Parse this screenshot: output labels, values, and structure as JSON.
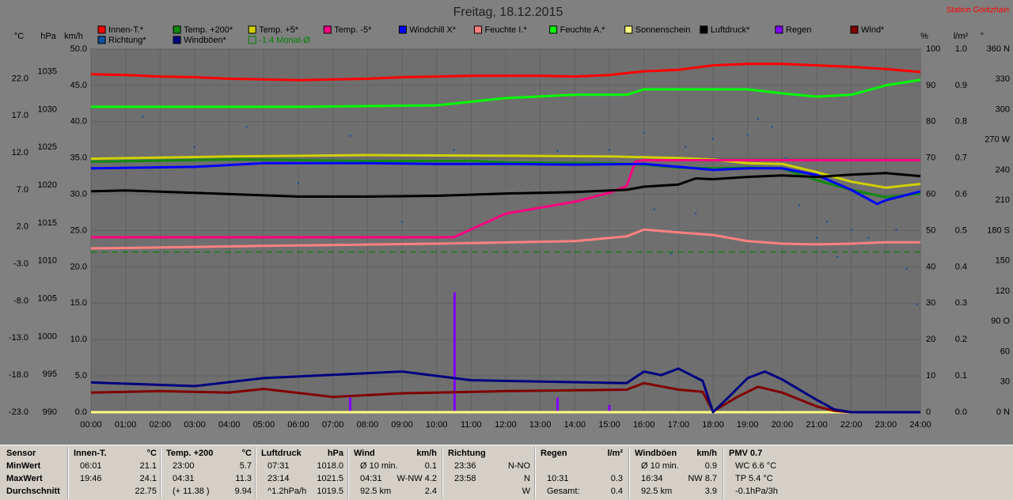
{
  "chart_data": {
    "type": "line",
    "title": "Freitag, 18.12.2015",
    "station": "Station Göritzhain",
    "xlim": [
      0,
      24
    ],
    "xticks": [
      {
        "value": 0,
        "label": "00:00"
      },
      {
        "value": 1,
        "label": "01:00"
      },
      {
        "value": 2,
        "label": "02:00"
      },
      {
        "value": 3,
        "label": "03:00"
      },
      {
        "value": 4,
        "label": "04:00"
      },
      {
        "value": 5,
        "label": "05:00"
      },
      {
        "value": 6,
        "label": "06:00"
      },
      {
        "value": 7,
        "label": "07:00"
      },
      {
        "value": 8,
        "label": "08:00"
      },
      {
        "value": 9,
        "label": "09:00"
      },
      {
        "value": 10,
        "label": "10:00"
      },
      {
        "value": 11,
        "label": "11:00"
      },
      {
        "value": 12,
        "label": "12:00"
      },
      {
        "value": 13,
        "label": "13:00"
      },
      {
        "value": 14,
        "label": "14:00"
      },
      {
        "value": 15,
        "label": "15:00"
      },
      {
        "value": 16,
        "label": "16:00"
      },
      {
        "value": 17,
        "label": "17:00"
      },
      {
        "value": 18,
        "label": "18:00"
      },
      {
        "value": 19,
        "label": "19:00"
      },
      {
        "value": 20,
        "label": "20:00"
      },
      {
        "value": 21,
        "label": "21:00"
      },
      {
        "value": 22,
        "label": "22:00"
      },
      {
        "value": 23,
        "label": "23:00"
      },
      {
        "value": 24,
        "label": "24:00"
      }
    ],
    "grid": true,
    "axes": [
      {
        "unit": "°C",
        "side": "left",
        "lim": [
          -23,
          26
        ],
        "ticks": [
          {
            "value": 22,
            "label": "22.0"
          },
          {
            "value": 17,
            "label": "17.0"
          },
          {
            "value": 12,
            "label": "12.0"
          },
          {
            "value": 7,
            "label": "7.0"
          },
          {
            "value": 2,
            "label": "2.0"
          },
          {
            "value": -3,
            "label": "-3.0"
          },
          {
            "value": -8,
            "label": "-8.0"
          },
          {
            "value": -13,
            "label": "-13.0"
          },
          {
            "value": -18,
            "label": "-18.0"
          },
          {
            "value": -23,
            "label": "-23.0"
          }
        ]
      },
      {
        "unit": "hPa",
        "side": "left",
        "lim": [
          990,
          1038
        ],
        "ticks": [
          1035,
          1030,
          1025,
          1020,
          1015,
          1010,
          1005,
          1000,
          995,
          990
        ]
      },
      {
        "unit": "km/h",
        "side": "left",
        "lim": [
          0,
          50
        ],
        "grid": true,
        "ticks": [
          {
            "value": 50,
            "label": "50.0"
          },
          {
            "value": 45,
            "label": "45.0"
          },
          {
            "value": 40,
            "label": "40.0"
          },
          {
            "value": 35,
            "label": "35.0"
          },
          {
            "value": 30,
            "label": "30.0"
          },
          {
            "value": 25,
            "label": "25.0"
          },
          {
            "value": 20,
            "label": "20.0"
          },
          {
            "value": 15,
            "label": "15.0"
          },
          {
            "value": 10,
            "label": "10.0"
          },
          {
            "value": 5,
            "label": "5.0"
          },
          {
            "value": 0,
            "label": "0.0"
          }
        ]
      },
      {
        "unit": "%",
        "side": "right",
        "lim": [
          0,
          100
        ],
        "ticks": [
          100,
          90,
          80,
          70,
          60,
          50,
          40,
          30,
          20,
          10,
          0
        ]
      },
      {
        "unit": "l/m²",
        "side": "right",
        "lim": [
          0,
          1
        ],
        "ticks": [
          {
            "value": 1,
            "label": "1.0"
          },
          0.9,
          0.8,
          0.7,
          0.6,
          0.5,
          0.4,
          0.3,
          0.2,
          0.1,
          {
            "value": 0,
            "label": "0.0"
          }
        ]
      },
      {
        "unit": "°",
        "side": "right",
        "lim": [
          0,
          360
        ],
        "ticks": [
          {
            "value": 360,
            "label": "360 N"
          },
          330,
          300,
          {
            "value": 270,
            "label": "270 W"
          },
          240,
          210,
          {
            "value": 180,
            "label": "180 S"
          },
          150,
          120,
          {
            "value": 90,
            "label": "90 O"
          },
          60,
          30,
          {
            "value": 0,
            "label": "0 N"
          }
        ]
      }
    ],
    "series": [
      {
        "name": "Innen-T.*",
        "color": "#ff0000",
        "axis": 0,
        "x": [
          0,
          1,
          2,
          3,
          4,
          5,
          6,
          7,
          8,
          9,
          10,
          11,
          12,
          13,
          14,
          15,
          16,
          17,
          18,
          19,
          20,
          21,
          22,
          23,
          24
        ],
        "values": [
          22.6,
          22.5,
          22.3,
          22.2,
          22.0,
          21.9,
          21.8,
          21.9,
          22.0,
          22.2,
          22.3,
          22.4,
          22.4,
          22.4,
          22.3,
          22.5,
          23.0,
          23.2,
          23.8,
          24.0,
          24.0,
          23.8,
          23.6,
          23.3,
          22.9
        ]
      },
      {
        "name": "Temp. +200*",
        "color": "#108a10",
        "axis": 0,
        "x": [
          0,
          4,
          8,
          11,
          12,
          15,
          16,
          17,
          18,
          19,
          20,
          21,
          22,
          23,
          24
        ],
        "values": [
          10.8,
          11.1,
          10.9,
          10.9,
          10.7,
          10.6,
          10.4,
          10.0,
          9.9,
          10.0,
          9.9,
          8.3,
          7.0,
          6.0,
          6.5
        ]
      },
      {
        "name": "Temp. +5*",
        "color": "#d0d000",
        "axis": 0,
        "x": [
          0,
          4,
          8,
          12,
          15,
          16,
          17,
          18,
          19,
          20,
          21,
          22,
          23,
          24
        ],
        "values": [
          11.2,
          11.5,
          11.7,
          11.6,
          11.5,
          11.4,
          11.3,
          11.1,
          10.6,
          10.5,
          9.4,
          8.1,
          7.3,
          7.8
        ]
      },
      {
        "name": "Temp. -5*",
        "color": "#ff0080",
        "axis": 0,
        "x": [
          0,
          10.5,
          12,
          13,
          14,
          15,
          15.5,
          15.75,
          16,
          24
        ],
        "values": [
          0.6,
          0.6,
          3.8,
          4.6,
          5.4,
          6.6,
          7.5,
          10.8,
          11.0,
          11.0
        ]
      },
      {
        "name": "Windchill X*",
        "color": "#0000ff",
        "axis": 0,
        "x": [
          0,
          3,
          5,
          8,
          10,
          12,
          14,
          16,
          17,
          18,
          19,
          20,
          21,
          22,
          22.75,
          23,
          24
        ],
        "values": [
          9.9,
          10.1,
          10.6,
          10.6,
          10.5,
          10.5,
          10.4,
          10.5,
          10.1,
          9.7,
          9.9,
          9.9,
          9.0,
          7.0,
          5.1,
          5.6,
          6.8
        ]
      },
      {
        "name": "Feuchte I.*",
        "color": "#ff8080",
        "axis": 3,
        "x": [
          0,
          5,
          10,
          14,
          15.5,
          16,
          17,
          18,
          19,
          20,
          21,
          22,
          23,
          24
        ],
        "values": [
          45.1,
          45.8,
          46.4,
          47.1,
          48.4,
          50.3,
          49.5,
          48.8,
          47.1,
          46.4,
          46.2,
          46.4,
          46.8,
          46.8
        ]
      },
      {
        "name": "Feuchte A.*",
        "color": "#00ff00",
        "axis": 3,
        "x": [
          0,
          6,
          10,
          12,
          14,
          15.5,
          16,
          19,
          20,
          21,
          22,
          23,
          24
        ],
        "values": [
          84.1,
          84.1,
          84.5,
          86.5,
          87.4,
          87.4,
          88.9,
          88.9,
          87.8,
          86.9,
          87.4,
          90.0,
          91.5
        ]
      },
      {
        "name": "Sonnenschein",
        "color": "#ffff80",
        "axis": 3,
        "x": [
          0,
          24
        ],
        "values": [
          0,
          0
        ]
      },
      {
        "name": "Luftdruck*",
        "color": "#000000",
        "axis": 1,
        "x": [
          0,
          1,
          3,
          6,
          8,
          10,
          12,
          14,
          15.5,
          16,
          17,
          17.5,
          18,
          19,
          20,
          21,
          22,
          23,
          24
        ],
        "values": [
          1019.2,
          1019.3,
          1019.0,
          1018.5,
          1018.5,
          1018.6,
          1018.9,
          1019.1,
          1019.4,
          1019.8,
          1020.1,
          1020.9,
          1020.8,
          1021.1,
          1021.3,
          1021.1,
          1021.4,
          1021.6,
          1021.2
        ]
      },
      {
        "name": "Regen",
        "color": "#8000ff",
        "axis": 4,
        "type": "bar",
        "x": [
          7.5,
          10.52,
          13.5,
          15.0
        ],
        "values": [
          0.04,
          0.33,
          0.04,
          0.02
        ]
      },
      {
        "name": "Wind*",
        "color": "#800000",
        "axis": 2,
        "x": [
          0,
          2,
          4,
          5,
          7,
          9,
          12,
          15.5,
          16,
          17,
          17.7,
          18,
          18.7,
          19.3,
          20,
          21,
          21.5,
          22,
          24
        ],
        "values": [
          2.7,
          2.9,
          2.7,
          3.2,
          2.1,
          2.6,
          2.9,
          3.1,
          4.0,
          3.1,
          2.8,
          0.1,
          2.1,
          3.5,
          2.7,
          0.8,
          0.2,
          0,
          0
        ]
      },
      {
        "name": "Richtung*",
        "color": "#1050a0",
        "axis": 5,
        "type": "scatter",
        "x": [
          1.5,
          3.0,
          4.5,
          6.0,
          7.5,
          9.0,
          10.5,
          13.5,
          15.0,
          16.0,
          16.3,
          16.8,
          17.2,
          17.5,
          18.0,
          18.5,
          19.0,
          19.3,
          19.7,
          20.1,
          20.5,
          21.0,
          21.3,
          21.6,
          22.0,
          22.5,
          23.3,
          23.6,
          23.9
        ],
        "values": [
          293,
          263,
          283,
          227,
          274,
          189,
          260,
          259,
          260,
          277,
          201,
          157,
          263,
          197,
          271,
          173,
          275,
          291,
          283,
          252,
          205,
          173,
          189,
          154,
          181,
          173,
          181,
          142,
          107
        ]
      },
      {
        "name": "Windböen*",
        "color": "#000080",
        "axis": 2,
        "x": [
          0,
          3,
          5,
          9,
          11,
          15.5,
          16,
          16.5,
          17,
          17.7,
          18,
          18.5,
          19,
          19.5,
          20,
          21,
          21.5,
          22,
          24
        ],
        "values": [
          4.1,
          3.6,
          4.7,
          5.6,
          4.4,
          4.0,
          5.6,
          5.1,
          6.0,
          4.3,
          0,
          2.3,
          4.7,
          5.6,
          4.5,
          1.7,
          0.4,
          0,
          0
        ]
      },
      {
        "name": "-1.4 Monat-Ø",
        "color": "#008000",
        "axis": 0,
        "dashed": true,
        "x": [
          0,
          24
        ],
        "values": [
          -1.4,
          -1.4
        ]
      }
    ]
  },
  "table": {
    "sensor": {
      "header": "Sensor",
      "rows": [
        "MinWert",
        "MaxWert",
        "Durchschnitt"
      ]
    },
    "columns": [
      {
        "header": "Innen-T.",
        "unit": "°C",
        "rows": [
          {
            "left": "06:01",
            "right": "21.1"
          },
          {
            "left": "19:46",
            "right": "24.1"
          },
          {
            "right": "22.75"
          }
        ]
      },
      {
        "header": "Temp. +200",
        "unit": "°C",
        "rows": [
          {
            "left": "23:00",
            "right": "5.7"
          },
          {
            "left": "04:31",
            "right": "11.3"
          },
          {
            "left": "(+ 11.38 )",
            "right": "9.94"
          }
        ]
      },
      {
        "header": "Luftdruck",
        "unit": "hPa",
        "rows": [
          {
            "left": "07:31",
            "right": "1018.0"
          },
          {
            "left": "23:14",
            "right": "1021.5"
          },
          {
            "left": "^1.2hPa/h",
            "right": "1019.5"
          }
        ]
      },
      {
        "header": "Wind",
        "unit": "km/h",
        "rows": [
          {
            "left": "Ø 10 min.",
            "right": "0.1"
          },
          {
            "left": "04:31",
            "right": "W-NW 4.2"
          },
          {
            "left": "92.5 km",
            "right": "2.4"
          }
        ]
      },
      {
        "header": "Richtung",
        "rows": [
          {
            "left": "23:36",
            "right": "N-NO"
          },
          {
            "left": "23:58",
            "right": "N"
          },
          {
            "right": "W"
          }
        ]
      },
      {
        "header": "Regen",
        "unit": "l/m²",
        "rows": [
          {},
          {
            "left": "10:31",
            "right": "0.3"
          },
          {
            "left": "Gesamt:",
            "right": "0.4"
          }
        ]
      },
      {
        "header": "Windböen",
        "unit": "km/h",
        "rows": [
          {
            "left": "Ø 10 min.",
            "right": "0.9"
          },
          {
            "left": "16:34",
            "right": "NW 8.7"
          },
          {
            "left": "92.5 km",
            "right": "3.9"
          }
        ]
      },
      {
        "header": "PMV 0.7",
        "rows": [
          {
            "left": "WC 6.6 °C"
          },
          {
            "left": "TP 5.4 °C"
          },
          {
            "left": "-0.1hPa/3h"
          }
        ]
      }
    ]
  }
}
